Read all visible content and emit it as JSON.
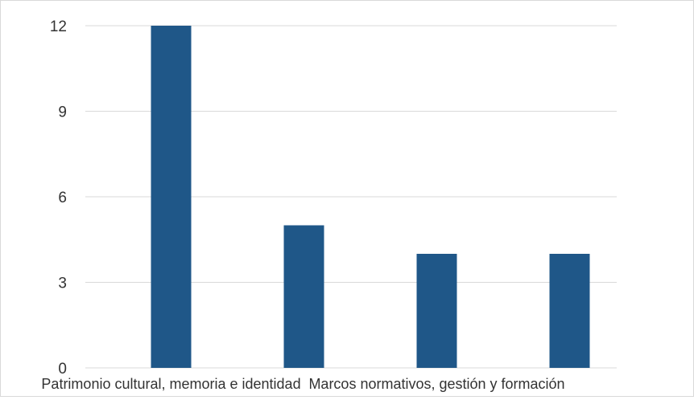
{
  "chart_data": {
    "type": "bar",
    "categories": [
      "Patrimonio cultural, memoria e identidad",
      "",
      "Marcos normativos, gestión y formación",
      ""
    ],
    "values": [
      12,
      5,
      4,
      4
    ],
    "ylim": [
      0,
      12
    ],
    "yticks": [
      0,
      3,
      6,
      9,
      12
    ],
    "grid": true,
    "legend": "none",
    "colors": {
      "bar": "#1f5788",
      "grid": "#d9d9d9",
      "text": "#333333"
    }
  }
}
